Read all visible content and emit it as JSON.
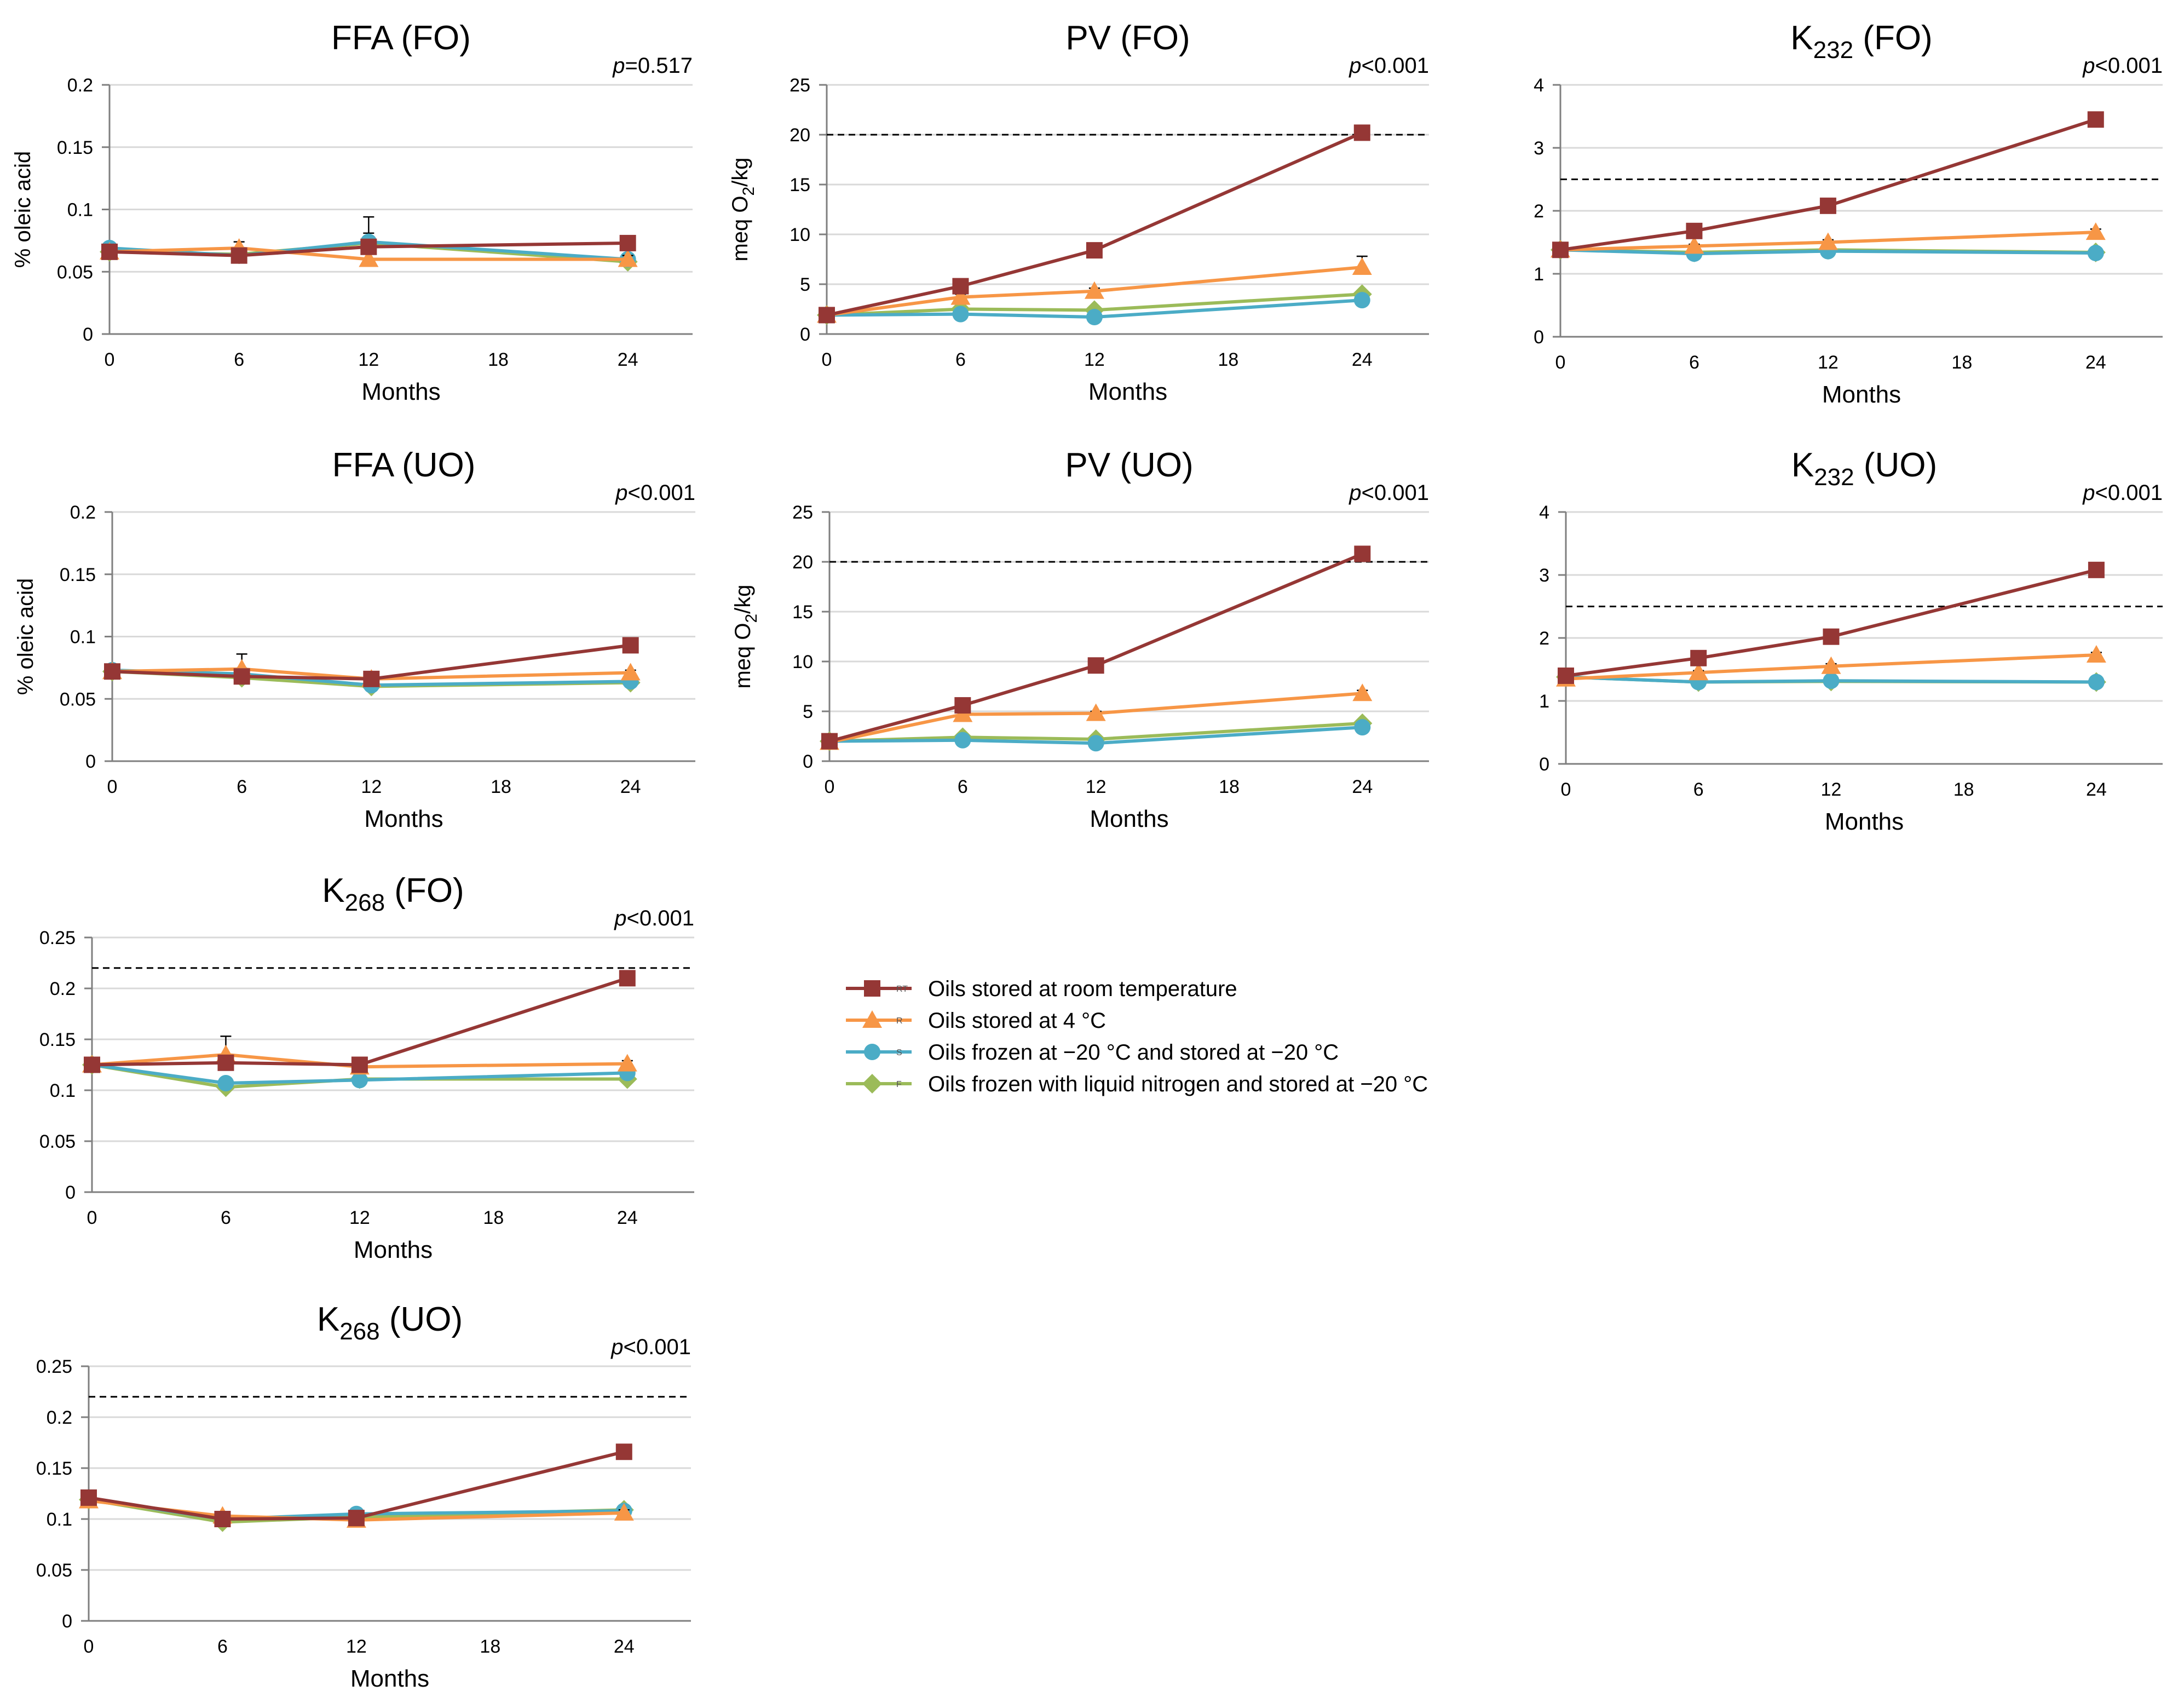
{
  "colors": {
    "RT": "#953735",
    "R": "#f79646",
    "S": "#4bacc6",
    "F": "#9bbb59",
    "grid": "#d9d9d9",
    "axis": "#7f7f7f"
  },
  "legend": [
    {
      "key": "RT",
      "code": "RT",
      "label": "Oils stored at room temperature",
      "marker": "square"
    },
    {
      "key": "R",
      "code": "R",
      "label": "Oils stored at 4 °C",
      "marker": "triangle"
    },
    {
      "key": "S",
      "code": "S",
      "label": "Oils frozen at −20 °C and stored at −20 °C",
      "marker": "circle"
    },
    {
      "key": "F",
      "code": "F",
      "label": "Oils frozen with liquid nitrogen and stored at −20 °C",
      "marker": "diamond"
    }
  ],
  "chart_data": [
    {
      "id": "ffa-fo",
      "type": "line",
      "title": "FFA (FO)",
      "title_main": "FFA",
      "title_sub": "",
      "title_suffix": " (FO)",
      "p_prefix": "p",
      "p_rest": "=0.517",
      "ylabel_main": "% oleic acid",
      "ylabel_sub": "",
      "ylabel_suffix": "",
      "xlabel": "Months",
      "ylim": [
        0,
        0.2
      ],
      "yticks": [
        0,
        0.05,
        0.1,
        0.15,
        0.2
      ],
      "yticklabels": [
        "0",
        "0.05",
        "0.1",
        "0.15",
        "0.2"
      ],
      "xlim": [
        0,
        27
      ],
      "xticks": [
        0,
        6,
        12,
        18,
        24
      ],
      "xticklabels": [
        "0",
        "6",
        "12",
        "18",
        "24"
      ],
      "limit": null,
      "x": [
        0,
        6,
        12,
        24
      ],
      "series": [
        {
          "key": "RT",
          "values": [
            0.066,
            0.063,
            0.07,
            0.073
          ],
          "errors": [
            0.004,
            0.003,
            0.005,
            0.002
          ]
        },
        {
          "key": "R",
          "values": [
            0.066,
            0.069,
            0.06,
            0.06
          ],
          "errors": [
            0.003,
            0.005,
            0.01,
            0.003
          ]
        },
        {
          "key": "S",
          "values": [
            0.069,
            0.063,
            0.074,
            0.06
          ],
          "errors": [
            0.003,
            0.004,
            0.02,
            0.003
          ]
        },
        {
          "key": "F",
          "values": [
            0.066,
            0.064,
            0.073,
            0.058
          ],
          "errors": [
            0.003,
            0.004,
            0.008,
            0.003
          ]
        }
      ]
    },
    {
      "id": "pv-fo",
      "type": "line",
      "title": "PV (FO)",
      "title_main": "PV",
      "title_sub": "",
      "title_suffix": " (FO)",
      "p_prefix": "p",
      "p_rest": "<0.001",
      "ylabel_main": "meq O",
      "ylabel_sub": "2",
      "ylabel_suffix": "/kg",
      "xlabel": "Months",
      "ylim": [
        0,
        25
      ],
      "yticks": [
        0,
        5,
        10,
        15,
        20,
        25
      ],
      "yticklabels": [
        "0",
        "5",
        "10",
        "15",
        "20",
        "25"
      ],
      "xlim": [
        0,
        27
      ],
      "xticks": [
        0,
        6,
        12,
        18,
        24
      ],
      "xticklabels": [
        "0",
        "6",
        "12",
        "18",
        "24"
      ],
      "limit": 20,
      "x": [
        0,
        6,
        12,
        24
      ],
      "series": [
        {
          "key": "RT",
          "values": [
            1.9,
            4.8,
            8.4,
            20.2
          ],
          "errors": [
            0.1,
            0.2,
            0.3,
            0.3
          ]
        },
        {
          "key": "R",
          "values": [
            1.9,
            3.7,
            4.3,
            6.7
          ],
          "errors": [
            0.1,
            0.3,
            0.3,
            1.1
          ]
        },
        {
          "key": "S",
          "values": [
            1.9,
            2.0,
            1.7,
            3.4
          ],
          "errors": [
            0.1,
            0.1,
            0.1,
            0.2
          ]
        },
        {
          "key": "F",
          "values": [
            1.9,
            2.5,
            2.4,
            4.0
          ],
          "errors": [
            0.1,
            0.1,
            0.1,
            0.3
          ]
        }
      ]
    },
    {
      "id": "k232-fo",
      "type": "line",
      "title": "K232 (FO)",
      "title_main": "K",
      "title_sub": "232",
      "title_suffix": " (FO)",
      "p_prefix": "p",
      "p_rest": "<0.001",
      "ylabel_main": "",
      "ylabel_sub": "",
      "ylabel_suffix": "",
      "xlabel": "Months",
      "ylim": [
        0,
        4
      ],
      "yticks": [
        0,
        1,
        2,
        3,
        4
      ],
      "yticklabels": [
        "0",
        "1",
        "2",
        "3",
        "4"
      ],
      "xlim": [
        0,
        27
      ],
      "xticks": [
        0,
        6,
        12,
        18,
        24
      ],
      "xticklabels": [
        "0",
        "6",
        "12",
        "18",
        "24"
      ],
      "limit": 2.5,
      "x": [
        0,
        6,
        12,
        24
      ],
      "series": [
        {
          "key": "RT",
          "values": [
            1.38,
            1.68,
            2.08,
            3.45
          ],
          "errors": [
            0.03,
            0.03,
            0.04,
            0.06
          ]
        },
        {
          "key": "R",
          "values": [
            1.38,
            1.44,
            1.5,
            1.66
          ],
          "errors": [
            0.03,
            0.03,
            0.04,
            0.05
          ]
        },
        {
          "key": "S",
          "values": [
            1.38,
            1.32,
            1.36,
            1.33
          ],
          "errors": [
            0.03,
            0.03,
            0.03,
            0.03
          ]
        },
        {
          "key": "F",
          "values": [
            1.38,
            1.34,
            1.38,
            1.34
          ],
          "errors": [
            0.03,
            0.03,
            0.03,
            0.03
          ]
        }
      ]
    },
    {
      "id": "ffa-uo",
      "type": "line",
      "title": "FFA (UO)",
      "title_main": "FFA",
      "title_sub": "",
      "title_suffix": " (UO)",
      "p_prefix": "p",
      "p_rest": "<0.001",
      "ylabel_main": "% oleic acid",
      "ylabel_sub": "",
      "ylabel_suffix": "",
      "xlabel": "Months",
      "ylim": [
        0,
        0.2
      ],
      "yticks": [
        0,
        0.05,
        0.1,
        0.15,
        0.2
      ],
      "yticklabels": [
        "0",
        "0.05",
        "0.1",
        "0.15",
        "0.2"
      ],
      "xlim": [
        0,
        27
      ],
      "xticks": [
        0,
        6,
        12,
        18,
        24
      ],
      "xticklabels": [
        "0",
        "6",
        "12",
        "18",
        "24"
      ],
      "limit": null,
      "x": [
        0,
        6,
        12,
        24
      ],
      "series": [
        {
          "key": "RT",
          "values": [
            0.072,
            0.068,
            0.066,
            0.093
          ],
          "errors": [
            0.003,
            0.004,
            0.003,
            0.002
          ]
        },
        {
          "key": "R",
          "values": [
            0.072,
            0.074,
            0.066,
            0.071
          ],
          "errors": [
            0.003,
            0.012,
            0.003,
            0.002
          ]
        },
        {
          "key": "S",
          "values": [
            0.073,
            0.07,
            0.061,
            0.064
          ],
          "errors": [
            0.003,
            0.003,
            0.005,
            0.002
          ]
        },
        {
          "key": "F",
          "values": [
            0.072,
            0.067,
            0.06,
            0.063
          ],
          "errors": [
            0.003,
            0.003,
            0.003,
            0.002
          ]
        }
      ]
    },
    {
      "id": "pv-uo",
      "type": "line",
      "title": "PV (UO)",
      "title_main": "PV",
      "title_sub": "",
      "title_suffix": " (UO)",
      "p_prefix": "p",
      "p_rest": "<0.001",
      "ylabel_main": "meq O",
      "ylabel_sub": "2",
      "ylabel_suffix": "/kg",
      "xlabel": "Months",
      "ylim": [
        0,
        25
      ],
      "yticks": [
        0,
        5,
        10,
        15,
        20,
        25
      ],
      "yticklabels": [
        "0",
        "5",
        "10",
        "15",
        "20",
        "25"
      ],
      "xlim": [
        0,
        27
      ],
      "xticks": [
        0,
        6,
        12,
        18,
        24
      ],
      "xticklabels": [
        "0",
        "6",
        "12",
        "18",
        "24"
      ],
      "limit": 20,
      "x": [
        0,
        6,
        12,
        24
      ],
      "series": [
        {
          "key": "RT",
          "values": [
            2.0,
            5.6,
            9.6,
            20.8
          ],
          "errors": [
            0.1,
            0.2,
            0.3,
            0.3
          ]
        },
        {
          "key": "R",
          "values": [
            1.9,
            4.7,
            4.8,
            6.8
          ],
          "errors": [
            0.1,
            0.2,
            0.2,
            0.3
          ]
        },
        {
          "key": "S",
          "values": [
            2.0,
            2.1,
            1.8,
            3.4
          ],
          "errors": [
            0.1,
            0.1,
            0.1,
            0.2
          ]
        },
        {
          "key": "F",
          "values": [
            2.0,
            2.4,
            2.2,
            3.8
          ],
          "errors": [
            0.1,
            0.1,
            0.1,
            0.2
          ]
        }
      ]
    },
    {
      "id": "k232-uo",
      "type": "line",
      "title": "K232 (UO)",
      "title_main": "K",
      "title_sub": "232",
      "title_suffix": " (UO)",
      "p_prefix": "p",
      "p_rest": "<0.001",
      "ylabel_main": "",
      "ylabel_sub": "",
      "ylabel_suffix": "",
      "xlabel": "Months",
      "ylim": [
        0,
        4
      ],
      "yticks": [
        0,
        1,
        2,
        3,
        4
      ],
      "yticklabels": [
        "0",
        "1",
        "2",
        "3",
        "4"
      ],
      "xlim": [
        0,
        27
      ],
      "xticks": [
        0,
        6,
        12,
        18,
        24
      ],
      "xticklabels": [
        "0",
        "6",
        "12",
        "18",
        "24"
      ],
      "limit": 2.5,
      "x": [
        0,
        6,
        12,
        24
      ],
      "series": [
        {
          "key": "RT",
          "values": [
            1.4,
            1.68,
            2.02,
            3.08
          ],
          "errors": [
            0.03,
            0.03,
            0.04,
            0.06
          ]
        },
        {
          "key": "R",
          "values": [
            1.35,
            1.45,
            1.55,
            1.73
          ],
          "errors": [
            0.03,
            0.03,
            0.04,
            0.04
          ]
        },
        {
          "key": "S",
          "values": [
            1.38,
            1.3,
            1.32,
            1.3
          ],
          "errors": [
            0.03,
            0.03,
            0.03,
            0.03
          ]
        },
        {
          "key": "F",
          "values": [
            1.38,
            1.3,
            1.31,
            1.3
          ],
          "errors": [
            0.03,
            0.03,
            0.03,
            0.03
          ]
        }
      ]
    },
    {
      "id": "k268-fo",
      "type": "line",
      "title": "K268 (FO)",
      "title_main": "K",
      "title_sub": "268",
      "title_suffix": " (FO)",
      "p_prefix": "p",
      "p_rest": "<0.001",
      "ylabel_main": "",
      "ylabel_sub": "",
      "ylabel_suffix": "",
      "xlabel": "Months",
      "ylim": [
        0,
        0.25
      ],
      "yticks": [
        0,
        0.05,
        0.1,
        0.15,
        0.2,
        0.25
      ],
      "yticklabels": [
        "0",
        "0.05",
        "0.1",
        "0.15",
        "0.2",
        "0.25"
      ],
      "xlim": [
        0,
        27
      ],
      "xticks": [
        0,
        6,
        12,
        18,
        24
      ],
      "xticklabels": [
        "0",
        "6",
        "12",
        "18",
        "24"
      ],
      "limit": 0.22,
      "x": [
        0,
        6,
        12,
        24
      ],
      "series": [
        {
          "key": "RT",
          "values": [
            0.125,
            0.127,
            0.125,
            0.21
          ],
          "errors": [
            0.003,
            0.004,
            0.004,
            0.003
          ]
        },
        {
          "key": "R",
          "values": [
            0.125,
            0.135,
            0.123,
            0.126
          ],
          "errors": [
            0.003,
            0.018,
            0.004,
            0.003
          ]
        },
        {
          "key": "S",
          "values": [
            0.125,
            0.107,
            0.11,
            0.117
          ],
          "errors": [
            0.003,
            0.004,
            0.003,
            0.003
          ]
        },
        {
          "key": "F",
          "values": [
            0.125,
            0.103,
            0.111,
            0.111
          ],
          "errors": [
            0.003,
            0.004,
            0.003,
            0.003
          ]
        }
      ]
    },
    {
      "id": "k268-uo",
      "type": "line",
      "title": "K268 (UO)",
      "title_main": "K",
      "title_sub": "268",
      "title_suffix": " (UO)",
      "p_prefix": "p",
      "p_rest": "<0.001",
      "ylabel_main": "",
      "ylabel_sub": "",
      "ylabel_suffix": "",
      "xlabel": "Months",
      "ylim": [
        0,
        0.25
      ],
      "yticks": [
        0,
        0.05,
        0.1,
        0.15,
        0.2,
        0.25
      ],
      "yticklabels": [
        "0",
        "0.05",
        "0.1",
        "0.15",
        "0.2",
        "0.25"
      ],
      "xlim": [
        0,
        27
      ],
      "xticks": [
        0,
        6,
        12,
        18,
        24
      ],
      "xticklabels": [
        "0",
        "6",
        "12",
        "18",
        "24"
      ],
      "limit": 0.22,
      "x": [
        0,
        6,
        12,
        24
      ],
      "series": [
        {
          "key": "RT",
          "values": [
            0.121,
            0.1,
            0.101,
            0.166
          ],
          "errors": [
            0.003,
            0.003,
            0.003,
            0.003
          ]
        },
        {
          "key": "R",
          "values": [
            0.118,
            0.103,
            0.099,
            0.106
          ],
          "errors": [
            0.003,
            0.003,
            0.003,
            0.003
          ]
        },
        {
          "key": "S",
          "values": [
            0.12,
            0.1,
            0.105,
            0.108
          ],
          "errors": [
            0.003,
            0.003,
            0.003,
            0.003
          ]
        },
        {
          "key": "F",
          "values": [
            0.119,
            0.097,
            0.102,
            0.109
          ],
          "errors": [
            0.003,
            0.003,
            0.003,
            0.003
          ]
        }
      ]
    }
  ]
}
